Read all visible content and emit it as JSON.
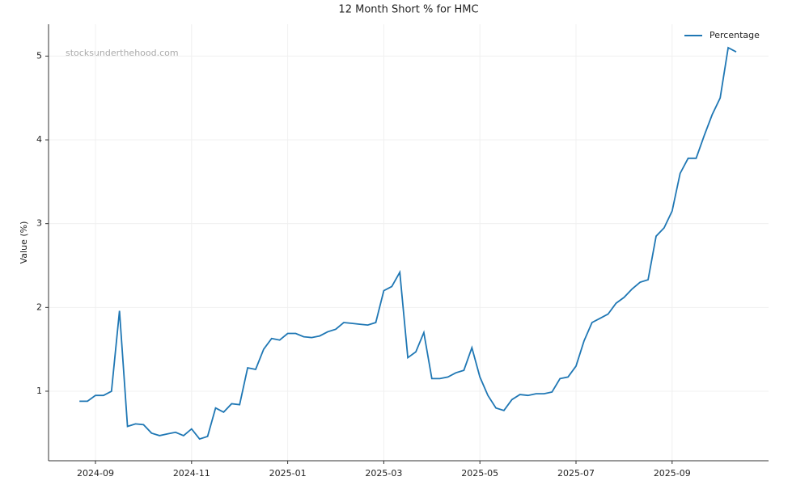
{
  "chart_data": {
    "type": "line",
    "title": "12 Month Short % for HMC",
    "ylabel": "Value (%)",
    "watermark": "stocksunderthehood.com",
    "categories": [
      null,
      null,
      "2024-09",
      null,
      null,
      null,
      null,
      null,
      null,
      null,
      null,
      null,
      null,
      null,
      "2024-11",
      null,
      null,
      null,
      null,
      null,
      null,
      null,
      null,
      null,
      null,
      null,
      "2025-01",
      null,
      null,
      null,
      null,
      null,
      null,
      null,
      null,
      null,
      null,
      null,
      "2025-03",
      null,
      null,
      null,
      null,
      null,
      null,
      null,
      null,
      null,
      null,
      null,
      "2025-05",
      null,
      null,
      null,
      null,
      null,
      null,
      null,
      null,
      null,
      null,
      null,
      "2025-07",
      null,
      null,
      null,
      null,
      null,
      null,
      null,
      null,
      null,
      null,
      null,
      "2025-09",
      null,
      null,
      null,
      null,
      null,
      null,
      null,
      null
    ],
    "series": [
      {
        "name": "Percentage",
        "color": "#1f77b4",
        "values": [
          0.88,
          0.88,
          0.95,
          0.95,
          1.0,
          1.96,
          0.58,
          0.61,
          0.6,
          0.5,
          0.47,
          0.49,
          0.51,
          0.47,
          0.55,
          0.43,
          0.46,
          0.8,
          0.75,
          0.85,
          0.84,
          1.28,
          1.26,
          1.5,
          1.63,
          1.61,
          1.69,
          1.69,
          1.65,
          1.64,
          1.66,
          1.71,
          1.74,
          1.82,
          1.81,
          1.8,
          1.79,
          1.82,
          2.2,
          2.25,
          2.42,
          1.4,
          1.47,
          1.7,
          1.15,
          1.15,
          1.17,
          1.22,
          1.25,
          1.52,
          1.17,
          0.95,
          0.8,
          0.77,
          0.9,
          0.96,
          0.95,
          0.97,
          0.97,
          0.99,
          1.15,
          1.17,
          1.3,
          1.6,
          1.82,
          1.87,
          1.92,
          2.05,
          2.12,
          2.22,
          2.3,
          2.33,
          2.85,
          2.95,
          3.15,
          3.6,
          3.78,
          3.78,
          4.05,
          4.3,
          4.5,
          5.1,
          5.05
        ]
      }
    ],
    "ylim": [
      0.17,
      5.38
    ],
    "yticks": [
      1,
      2,
      3,
      4,
      5
    ],
    "grid": true,
    "legend": "upper right"
  }
}
